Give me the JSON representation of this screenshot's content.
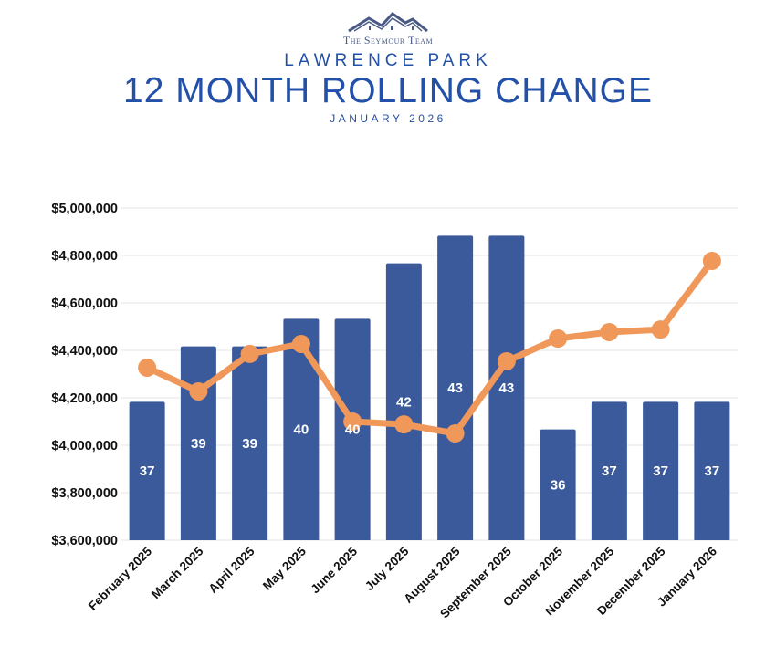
{
  "header": {
    "brand": "The Seymour Team",
    "subtitle": "LAWRENCE PARK",
    "title": "12 MONTH ROLLING CHANGE",
    "date": "JANUARY 2026"
  },
  "chart_data": {
    "type": "bar+line",
    "title": "12 MONTH ROLLING CHANGE",
    "categories": [
      "February 2025",
      "March 2025",
      "April 2025",
      "May 2025",
      "June 2025",
      "July 2025",
      "August 2025",
      "September 2025",
      "October 2025",
      "November 2025",
      "December 2025",
      "January 2026"
    ],
    "bar_series": {
      "values": [
        37,
        39,
        39,
        40,
        40,
        42,
        43,
        43,
        36,
        37,
        37,
        37
      ],
      "ylim": [
        32,
        44
      ],
      "color": "#3a5a9b"
    },
    "line_series": {
      "values": [
        4327000,
        4227000,
        4385000,
        4427000,
        4100000,
        4088000,
        4050000,
        4354000,
        4450000,
        4477000,
        4488000,
        4777000
      ],
      "color": "#f0975a"
    },
    "ylim": [
      3600000,
      5000000
    ],
    "yticks": [
      "$3,600,000",
      "$3,800,000",
      "$4,000,000",
      "$4,200,000",
      "$4,400,000",
      "$4,600,000",
      "$4,800,000",
      "$5,000,000"
    ],
    "grid": true,
    "legend": "none"
  }
}
